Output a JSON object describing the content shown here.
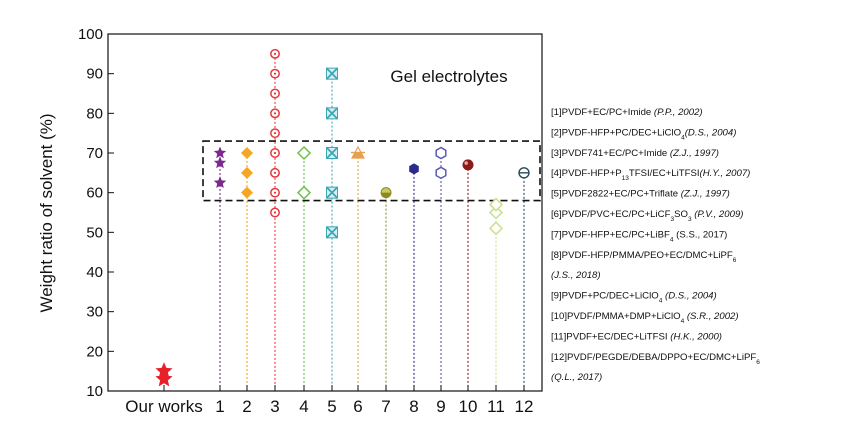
{
  "chart_data": {
    "type": "scatter",
    "title": "Gel electrolytes",
    "xlabel": "",
    "ylabel": "Weight ratio of solvent (%)",
    "ylim": [
      10,
      100
    ],
    "yticks": [
      10,
      20,
      30,
      40,
      50,
      60,
      70,
      80,
      90,
      100
    ],
    "grid": false,
    "legend_position": "right",
    "categories": [
      "Our works",
      "1",
      "2",
      "3",
      "4",
      "5",
      "6",
      "7",
      "8",
      "9",
      "10",
      "11",
      "12"
    ],
    "dashed_box": {
      "y_range": [
        58,
        73
      ]
    },
    "series": [
      {
        "category": "Our works",
        "marker": "star-filled",
        "color": "#e8202a",
        "values": [
          13,
          15
        ]
      },
      {
        "category": "1",
        "marker": "star-filled",
        "color": "#7b2a8e",
        "values": [
          62.5,
          67.5,
          70
        ]
      },
      {
        "category": "2",
        "marker": "diamond-filled",
        "color": "#f5a623",
        "values": [
          60,
          65,
          70
        ]
      },
      {
        "category": "3",
        "marker": "circle-dot-open",
        "color": "#e8363a",
        "values": [
          55,
          60,
          65,
          70,
          75,
          80,
          85,
          90,
          95
        ]
      },
      {
        "category": "4",
        "marker": "diamond-open",
        "color": "#6cc24a",
        "values": [
          60,
          70
        ]
      },
      {
        "category": "5",
        "marker": "x-box",
        "color": "#3aa7b5",
        "values": [
          50,
          60,
          70,
          80,
          90
        ]
      },
      {
        "category": "6",
        "marker": "triangle-half",
        "color": "#e8a050",
        "values": [
          70
        ]
      },
      {
        "category": "7",
        "marker": "circle-half",
        "color": "#8a8a20",
        "values": [
          60
        ]
      },
      {
        "category": "8",
        "marker": "hexagon-filled",
        "color": "#2c2a8a",
        "values": [
          66
        ]
      },
      {
        "category": "9",
        "marker": "hexagon-open",
        "color": "#5a5ab8",
        "values": [
          65,
          70
        ]
      },
      {
        "category": "10",
        "marker": "sphere",
        "color": "#8b1a1a",
        "values": [
          67
        ]
      },
      {
        "category": "11",
        "marker": "diamond-open",
        "color": "#c8e08a",
        "values": [
          51,
          55,
          57
        ]
      },
      {
        "category": "12",
        "marker": "circle-bar-open",
        "color": "#2a4a5a",
        "values": [
          65
        ]
      }
    ],
    "legend_entries": [
      {
        "text": "[1]PVDF+EC/PC+Imide ",
        "cite": "(P.P., 2002)"
      },
      {
        "text": "[2]PVDF-HFP+PC/DEC+LiClO",
        "sub": "4",
        "cite": "(D.S., 2004)"
      },
      {
        "text": "[3]PVDF741+EC/PC+Imide ",
        "cite": "(Z.J., 1997)"
      },
      {
        "text": "[4]PVDF-HFP+P",
        "sub": "13",
        "text2": "TFSI/EC+LiTFSI",
        "cite": "(H.Y., 2007)"
      },
      {
        "text": "[5]PVDF2822+EC/PC+Triflate ",
        "cite": "(Z.J., 1997)"
      },
      {
        "text": "[6]PVDF/PVC+EC/PC+LiCF",
        "sub": "3",
        "text2": "SO",
        "sub2": "3",
        "cite": " (P.V., 2009)"
      },
      {
        "text": "[7]PVDF-HFP+EC/PC+LiBF",
        "sub": "4",
        "text2": " (S.S., 2017)"
      },
      {
        "text": "[8]PVDF-HFP/PMMA/PEO+EC/DMC+LiPF",
        "sub": "6"
      },
      {
        "text": "",
        "cite": "(J.S., 2018)"
      },
      {
        "text": "[9]PVDF+PC/DEC+LiClO",
        "sub": "4",
        "cite": " (D.S., 2004)"
      },
      {
        "text": "[10]PVDF/PMMA+DMP+LiClO",
        "sub": "4",
        "cite": " (S.R., 2002)"
      },
      {
        "text": "[11]PVDF+EC/DEC+LiTFSI ",
        "cite": "(H.K., 2000)"
      },
      {
        "text": "[12]PVDF/PEGDE/DEBA/DPPO+EC/DMC+LiPF",
        "sub": "6"
      },
      {
        "text": "",
        "cite": "(Q.L., 2017)"
      }
    ]
  }
}
